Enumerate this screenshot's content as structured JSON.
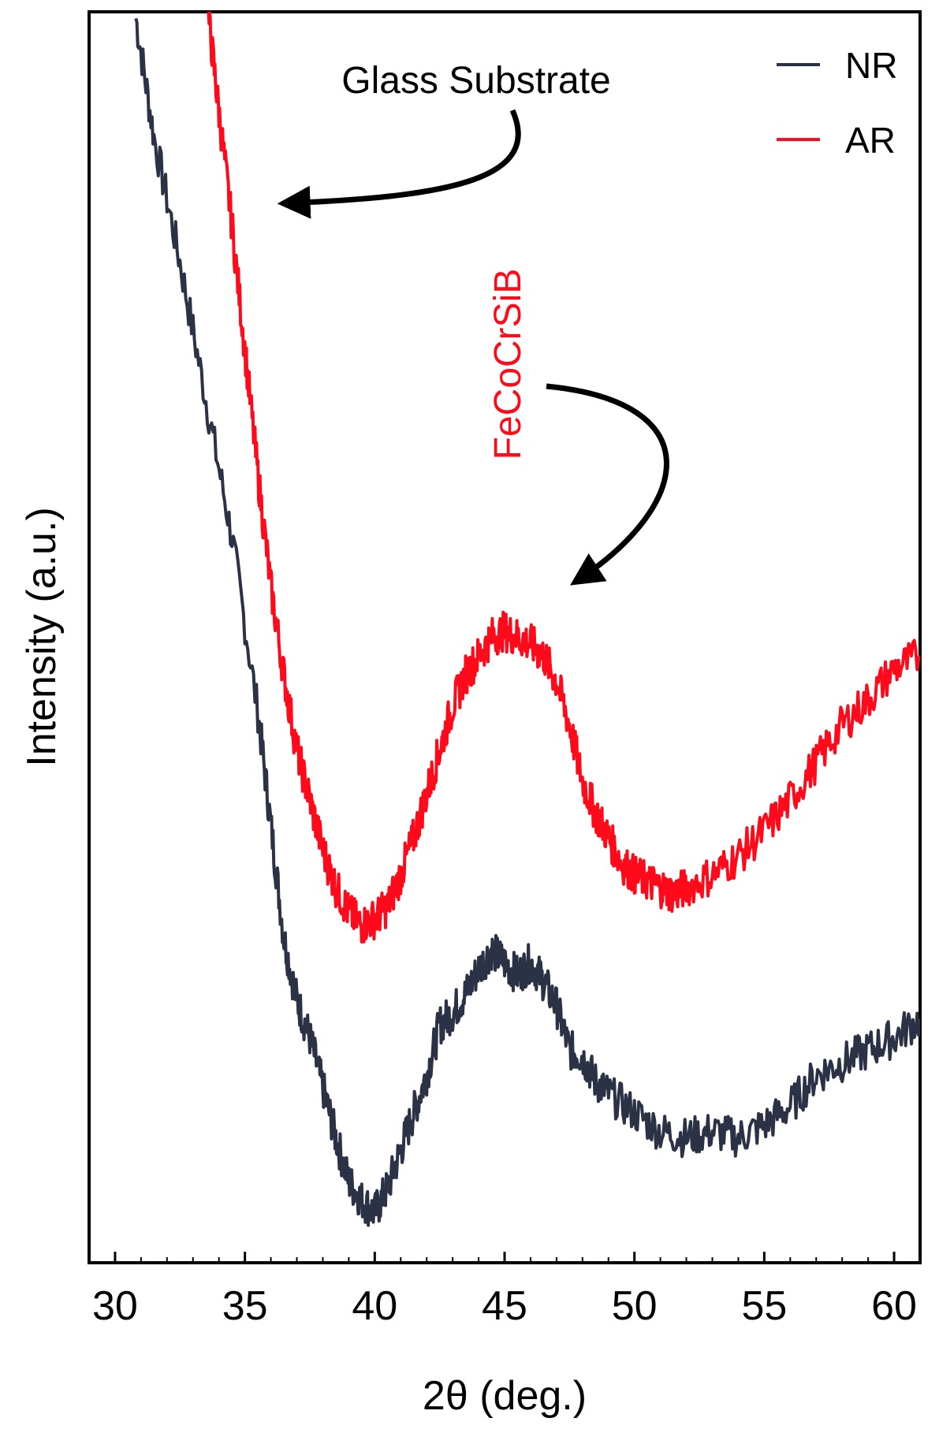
{
  "chart_data": {
    "type": "line",
    "xlabel": "2θ (deg.)",
    "ylabel": "Intensity (a.u.)",
    "xlim": [
      29,
      61
    ],
    "ylim": [
      0,
      100
    ],
    "xticks": [
      "30",
      "35",
      "40",
      "45",
      "50",
      "55",
      "60"
    ],
    "yticks": [],
    "grid": false,
    "legend_position": "top-right",
    "series": [
      {
        "name": "NR",
        "color": "#2b3245",
        "x": [
          30.8,
          31.5,
          32.5,
          33.5,
          34.5,
          35.5,
          36.0,
          36.5,
          37.0,
          37.5,
          38.0,
          38.5,
          39.0,
          39.5,
          40.0,
          40.5,
          41.0,
          41.5,
          42.0,
          42.5,
          43.0,
          43.5,
          44.0,
          44.5,
          45.0,
          45.5,
          46.0,
          46.5,
          47.0,
          47.5,
          48.0,
          48.5,
          49.0,
          50.0,
          51.0,
          52.0,
          53.0,
          54.0,
          55.0,
          56.0,
          57.0,
          58.0,
          59.0,
          60.0,
          61.0
        ],
        "y": [
          99.5,
          90,
          80,
          69,
          58,
          44,
          35,
          26,
          21,
          18,
          14,
          10,
          6.5,
          5,
          4,
          6,
          9,
          12,
          15,
          19,
          20,
          21.5,
          23.5,
          25,
          24,
          23,
          24,
          22.5,
          20.5,
          17,
          16.5,
          14.5,
          13.5,
          12,
          10.5,
          10,
          10.5,
          10,
          11,
          12.5,
          15,
          16,
          17,
          18,
          19.5
        ]
      },
      {
        "name": "AR",
        "color": "#ff0a1a",
        "x": [
          33.6,
          34.0,
          34.5,
          35.0,
          35.5,
          36.0,
          36.5,
          37.0,
          37.5,
          38.0,
          38.5,
          39.0,
          39.5,
          40.0,
          40.5,
          41.0,
          41.5,
          42.0,
          42.5,
          43.0,
          43.5,
          44.0,
          44.5,
          45.0,
          45.5,
          46.0,
          46.5,
          47.0,
          47.5,
          48.0,
          48.5,
          49.0,
          49.5,
          50.0,
          50.5,
          51.0,
          51.5,
          52.0,
          53.0,
          54.0,
          55.0,
          56.0,
          57.0,
          58.0,
          59.0,
          60.0,
          61.0
        ],
        "y": [
          99.5,
          92,
          83,
          73,
          63,
          54,
          47,
          41,
          37,
          33,
          30,
          28,
          27,
          27.5,
          28.5,
          31,
          34,
          37.5,
          41,
          44.5,
          47,
          48.5,
          50,
          50.5,
          50,
          49.5,
          48.5,
          46.5,
          43,
          38.5,
          36,
          34,
          32,
          31,
          30.5,
          30,
          29.5,
          30,
          31,
          32.5,
          34.5,
          37,
          40,
          43,
          45,
          47.5,
          48.5
        ]
      }
    ]
  },
  "annotations": {
    "glass_substrate": "Glass Substrate",
    "fecocrsib": "FeCoCrSiB"
  }
}
